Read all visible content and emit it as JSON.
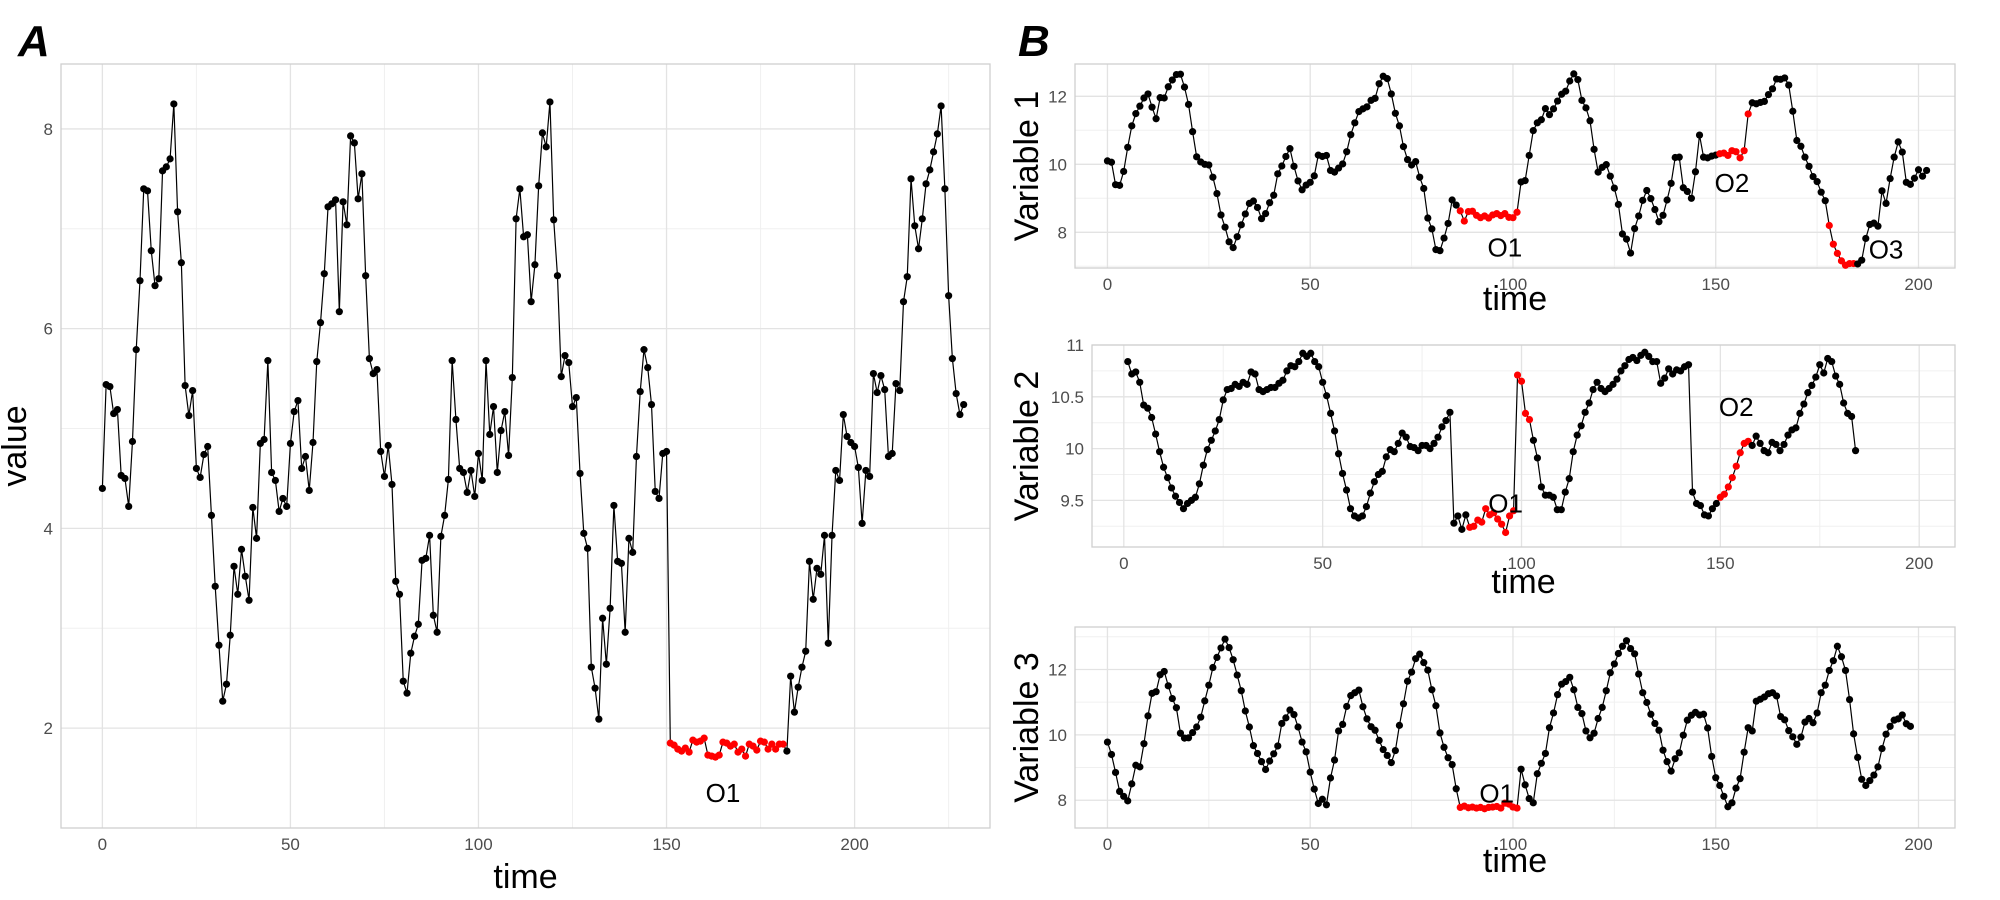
{
  "chart_data": [
    {
      "panel": "A",
      "type": "line",
      "xlabel": "time",
      "ylabel": "value",
      "xlim": [
        -11,
        236
      ],
      "ylim": [
        1.0,
        8.65
      ],
      "xticks": [
        0,
        50,
        100,
        150,
        200
      ],
      "yticks": [
        2,
        4,
        6,
        8
      ],
      "grid": true,
      "annotations": [
        {
          "text": "O1",
          "x": 165,
          "y": 1.35
        }
      ],
      "anomaly_color": "#ff0000",
      "normal_color": "#000000",
      "anomaly_ranges": [
        [
          151,
          181
        ]
      ],
      "series": [
        {
          "x_start": 0,
          "values": [
            4.4,
            5.44,
            5.42,
            5.15,
            5.19,
            4.53,
            4.5,
            4.22,
            4.87,
            5.79,
            6.48,
            7.4,
            7.38,
            6.78,
            6.43,
            6.5,
            7.58,
            7.62,
            7.7,
            8.25,
            7.17,
            6.66,
            5.43,
            5.13,
            5.38,
            4.6,
            4.51,
            4.74,
            4.82,
            4.13,
            3.42,
            2.83,
            2.27,
            2.44,
            2.93,
            3.62,
            3.34,
            3.79,
            3.52,
            3.28,
            4.21,
            3.9,
            4.85,
            4.89,
            5.68,
            4.56,
            4.48,
            4.17,
            4.3,
            4.22,
            4.85,
            5.17,
            5.28,
            4.6,
            4.72,
            4.38,
            4.86,
            5.67,
            6.06,
            6.55,
            7.22,
            7.25,
            7.29,
            6.17,
            7.27,
            7.04,
            7.93,
            7.86,
            7.3,
            7.55,
            6.53,
            5.7,
            5.55,
            5.59,
            4.77,
            4.52,
            4.83,
            4.44,
            3.47,
            3.34,
            2.47,
            2.35,
            2.75,
            2.92,
            3.04,
            3.68,
            3.7,
            3.93,
            3.13,
            2.96,
            3.92,
            4.13,
            4.49,
            5.68,
            5.09,
            4.6,
            4.56,
            4.36,
            4.58,
            4.32,
            4.75,
            4.48,
            5.68,
            4.94,
            5.22,
            4.56,
            4.98,
            5.17,
            4.73,
            5.51,
            7.1,
            7.4,
            6.92,
            6.94,
            6.27,
            6.64,
            7.43,
            7.96,
            7.82,
            8.27,
            7.09,
            6.53,
            5.52,
            5.73,
            5.66,
            5.22,
            5.31,
            4.55,
            3.95,
            3.8,
            2.61,
            2.4,
            2.09,
            3.1,
            2.64,
            3.2,
            4.23,
            3.67,
            3.65,
            2.96,
            3.9,
            3.76,
            4.72,
            5.37,
            5.79,
            5.61,
            5.24,
            4.37,
            4.3,
            4.75,
            4.77,
            1.85,
            1.83,
            1.79,
            1.77,
            1.8,
            1.76,
            1.88,
            1.86,
            1.87,
            1.9,
            1.73,
            1.72,
            1.71,
            1.73,
            1.86,
            1.85,
            1.82,
            1.84,
            1.76,
            1.79,
            1.72,
            1.84,
            1.82,
            1.78,
            1.87,
            1.86,
            1.79,
            1.84,
            1.79,
            1.84,
            1.84,
            1.77,
            2.52,
            2.16,
            2.41,
            2.61,
            2.77,
            3.67,
            3.29,
            3.6,
            3.54,
            3.93,
            2.85,
            3.93,
            4.58,
            4.48,
            5.14,
            4.92,
            4.86,
            4.82,
            4.61,
            4.05,
            4.58,
            4.52,
            5.55,
            5.36,
            5.53,
            5.39,
            4.72,
            4.75,
            5.45,
            5.38,
            6.27,
            6.52,
            7.5,
            7.03,
            6.8,
            7.1,
            7.45,
            7.59,
            7.77,
            7.95,
            8.23,
            7.4,
            6.33,
            5.7,
            5.35,
            5.14,
            5.24
          ]
        }
      ]
    },
    {
      "panel": "B",
      "type": "line",
      "xlabel": "time",
      "ylabel": "Variable 1",
      "xlim": [
        -8,
        209
      ],
      "ylim": [
        6.95,
        12.95
      ],
      "xticks": [
        0,
        50,
        100,
        150,
        200
      ],
      "yticks": [
        8,
        10,
        12
      ],
      "grid": true,
      "annotations": [
        {
          "text": "O1",
          "x": 98,
          "y": 7.55
        },
        {
          "text": "O2",
          "x": 154,
          "y": 9.45
        },
        {
          "text": "O3",
          "x": 192,
          "y": 7.5
        }
      ],
      "anomaly_color": "#ff0000",
      "normal_color": "#000000",
      "anomaly_ranges": [
        [
          87,
          101
        ],
        [
          151,
          158
        ],
        [
          178,
          184
        ]
      ],
      "series": [
        {
          "x_start": 0,
          "values": [
            10.1,
            10.06,
            9.4,
            9.38,
            9.79,
            10.5,
            11.13,
            11.49,
            11.71,
            11.95,
            12.07,
            11.68,
            11.34,
            11.96,
            11.95,
            12.28,
            12.48,
            12.64,
            12.65,
            12.27,
            11.76,
            10.96,
            10.22,
            10.07,
            10.0,
            9.98,
            9.62,
            9.14,
            8.51,
            8.15,
            7.72,
            7.55,
            7.87,
            8.22,
            8.54,
            8.85,
            8.92,
            8.73,
            8.4,
            8.55,
            8.87,
            9.09,
            9.72,
            9.95,
            10.23,
            10.46,
            9.94,
            9.51,
            9.25,
            9.39,
            9.47,
            9.66,
            10.27,
            10.23,
            10.26,
            9.82,
            9.77,
            9.89,
            10.01,
            10.37,
            10.87,
            11.22,
            11.55,
            11.63,
            11.69,
            11.88,
            11.94,
            12.37,
            12.59,
            12.52,
            12.07,
            11.5,
            11.13,
            10.52,
            10.14,
            9.98,
            10.08,
            9.62,
            9.29,
            8.42,
            8.1,
            7.49,
            7.46,
            7.83,
            8.26,
            8.95,
            8.8,
            8.63,
            8.33,
            8.61,
            8.62,
            8.5,
            8.43,
            8.48,
            8.42,
            8.51,
            8.55,
            8.49,
            8.55,
            8.44,
            8.43,
            8.59,
            9.48,
            9.52,
            10.26,
            10.99,
            11.22,
            11.31,
            11.64,
            11.46,
            11.63,
            11.86,
            12.06,
            12.15,
            12.45,
            12.66,
            12.49,
            11.88,
            11.66,
            11.28,
            10.44,
            9.77,
            9.91,
            9.99,
            9.65,
            9.3,
            8.82,
            7.95,
            7.8,
            7.39,
            8.11,
            8.48,
            8.94,
            9.23,
            8.99,
            8.67,
            8.31,
            8.5,
            8.95,
            9.44,
            10.2,
            10.21,
            9.31,
            9.2,
            9.0,
            9.78,
            10.86,
            10.21,
            10.19,
            10.24,
            10.27,
            10.31,
            10.33,
            10.26,
            10.4,
            10.37,
            10.19,
            10.4,
            11.48,
            11.81,
            11.78,
            11.82,
            11.85,
            12.05,
            12.22,
            12.51,
            12.5,
            12.54,
            12.33,
            11.56,
            10.7,
            10.53,
            10.21,
            9.94,
            9.64,
            9.49,
            9.18,
            8.93,
            8.2,
            7.65,
            7.38,
            7.16,
            7.03,
            7.08,
            7.08,
            7.07,
            7.18,
            7.82,
            8.23,
            8.27,
            8.18,
            9.22,
            8.85,
            9.58,
            10.21,
            10.66,
            10.36,
            9.47,
            9.41,
            9.59,
            9.84,
            9.65,
            9.82
          ]
        }
      ]
    },
    {
      "panel": "B",
      "type": "line",
      "xlabel": "time",
      "ylabel": "Variable 2",
      "xlim": [
        -8,
        209
      ],
      "ylim": [
        9.05,
        11.0
      ],
      "xticks": [
        0,
        50,
        100,
        150,
        200
      ],
      "yticks": [
        9.5,
        10.0,
        10.5,
        11.0
      ],
      "grid": true,
      "annotations": [
        {
          "text": "O1",
          "x": 96,
          "y": 9.47
        },
        {
          "text": "O2",
          "x": 154,
          "y": 10.4
        }
      ],
      "anomaly_color": "#ff0000",
      "normal_color": "#000000",
      "anomaly_ranges": [
        [
          87,
          102
        ],
        [
          150,
          157
        ]
      ],
      "series": [
        {
          "x_start": 1,
          "values": [
            10.84,
            10.72,
            10.74,
            10.64,
            10.42,
            10.39,
            10.3,
            10.14,
            9.97,
            9.82,
            9.72,
            9.62,
            9.54,
            9.48,
            9.42,
            9.47,
            9.5,
            9.53,
            9.66,
            9.84,
            9.99,
            10.08,
            10.17,
            10.28,
            10.47,
            10.57,
            10.58,
            10.62,
            10.6,
            10.64,
            10.62,
            10.74,
            10.72,
            10.57,
            10.55,
            10.57,
            10.59,
            10.59,
            10.63,
            10.66,
            10.75,
            10.8,
            10.79,
            10.84,
            10.92,
            10.89,
            10.92,
            10.84,
            10.79,
            10.64,
            10.51,
            10.34,
            10.17,
            9.95,
            9.76,
            9.6,
            9.42,
            9.35,
            9.33,
            9.35,
            9.44,
            9.57,
            9.68,
            9.75,
            9.78,
            9.92,
            9.99,
            9.97,
            10.05,
            10.15,
            10.11,
            10.02,
            10.01,
            9.98,
            10.03,
            10.03,
            10.0,
            10.05,
            10.11,
            10.21,
            10.27,
            10.35,
            9.28,
            9.35,
            9.22,
            9.36,
            9.24,
            9.25,
            9.31,
            9.29,
            9.42,
            9.36,
            9.38,
            9.32,
            9.27,
            9.19,
            9.35,
            9.4,
            10.71,
            10.65,
            10.34,
            10.28,
            10.08,
            9.91,
            9.63,
            9.55,
            9.55,
            9.53,
            9.41,
            9.41,
            9.58,
            9.71,
            9.97,
            10.13,
            10.22,
            10.35,
            10.44,
            10.57,
            10.64,
            10.58,
            10.55,
            10.58,
            10.62,
            10.67,
            10.75,
            10.8,
            10.86,
            10.88,
            10.85,
            10.9,
            10.93,
            10.89,
            10.84,
            10.84,
            10.63,
            10.68,
            10.77,
            10.72,
            10.76,
            10.75,
            10.79,
            10.81,
            9.58,
            9.47,
            9.45,
            9.36,
            9.35,
            9.42,
            9.47,
            9.53,
            9.56,
            9.63,
            9.72,
            9.83,
            9.96,
            10.05,
            10.07,
            10.03,
            10.12,
            10.05,
            9.98,
            9.96,
            10.06,
            10.04,
            9.98,
            10.04,
            10.13,
            10.18,
            10.2,
            10.34,
            10.43,
            10.54,
            10.61,
            10.69,
            10.81,
            10.73,
            10.87,
            10.84,
            10.7,
            10.62,
            10.44,
            10.34,
            10.31,
            9.98
          ]
        }
      ]
    },
    {
      "panel": "B",
      "type": "line",
      "xlabel": "time",
      "ylabel": "Variable 3",
      "xlim": [
        -8,
        209
      ],
      "ylim": [
        7.15,
        13.3
      ],
      "xticks": [
        0,
        50,
        100,
        150,
        200
      ],
      "yticks": [
        8,
        10,
        12
      ],
      "grid": true,
      "annotations": [
        {
          "text": "O1",
          "x": 96,
          "y": 8.2
        }
      ],
      "anomaly_color": "#ff0000",
      "normal_color": "#000000",
      "anomaly_ranges": [
        [
          87,
          101
        ]
      ],
      "series": [
        {
          "x_start": 0,
          "values": [
            9.78,
            9.4,
            8.85,
            8.27,
            8.12,
            7.98,
            8.5,
            9.07,
            9.02,
            9.73,
            10.58,
            11.27,
            11.32,
            11.84,
            11.94,
            11.5,
            11.11,
            10.83,
            10.05,
            9.9,
            9.91,
            10.07,
            10.24,
            10.54,
            11.04,
            11.52,
            12.06,
            12.37,
            12.66,
            12.93,
            12.67,
            12.3,
            11.83,
            11.35,
            10.73,
            10.24,
            9.67,
            9.43,
            9.18,
            8.94,
            9.2,
            9.42,
            9.66,
            10.35,
            10.52,
            10.76,
            10.62,
            10.24,
            9.78,
            9.48,
            8.86,
            8.34,
            7.9,
            8.03,
            7.86,
            8.68,
            9.23,
            10.12,
            10.32,
            10.87,
            11.2,
            11.29,
            11.37,
            10.86,
            10.49,
            10.25,
            10.14,
            9.83,
            9.55,
            9.37,
            9.15,
            9.52,
            10.29,
            10.95,
            11.64,
            11.92,
            12.33,
            12.47,
            12.21,
            11.98,
            11.38,
            10.89,
            10.06,
            9.62,
            9.3,
            9.09,
            8.35,
            7.78,
            7.82,
            7.77,
            7.79,
            7.76,
            7.78,
            7.74,
            7.78,
            7.79,
            7.81,
            7.76,
            7.91,
            7.88,
            7.79,
            7.76,
            8.95,
            8.47,
            8.05,
            7.92,
            8.81,
            9.13,
            9.43,
            10.22,
            10.67,
            11.23,
            11.55,
            11.63,
            11.76,
            11.38,
            10.84,
            10.65,
            10.12,
            9.91,
            10.05,
            10.5,
            10.84,
            11.35,
            11.9,
            12.17,
            12.49,
            12.71,
            12.88,
            12.64,
            12.48,
            11.86,
            11.29,
            10.99,
            10.63,
            10.35,
            10.14,
            9.53,
            9.18,
            8.89,
            9.27,
            9.45,
            9.99,
            10.45,
            10.6,
            10.69,
            10.61,
            10.63,
            10.21,
            9.34,
            8.69,
            8.45,
            8.12,
            7.8,
            7.92,
            8.37,
            8.66,
            9.47,
            10.22,
            10.12,
            11.03,
            11.09,
            11.16,
            11.26,
            11.29,
            11.19,
            10.56,
            10.46,
            10.13,
            9.94,
            9.71,
            9.93,
            10.39,
            10.5,
            10.37,
            10.67,
            11.29,
            11.52,
            11.97,
            12.27,
            12.71,
            12.39,
            11.97,
            11.08,
            10.03,
            9.31,
            8.64,
            8.45,
            8.6,
            8.77,
            9.02,
            9.58,
            10.02,
            10.26,
            10.45,
            10.49,
            10.61,
            10.34,
            10.26
          ]
        }
      ]
    }
  ],
  "panel_labels": [
    "A",
    "B"
  ]
}
